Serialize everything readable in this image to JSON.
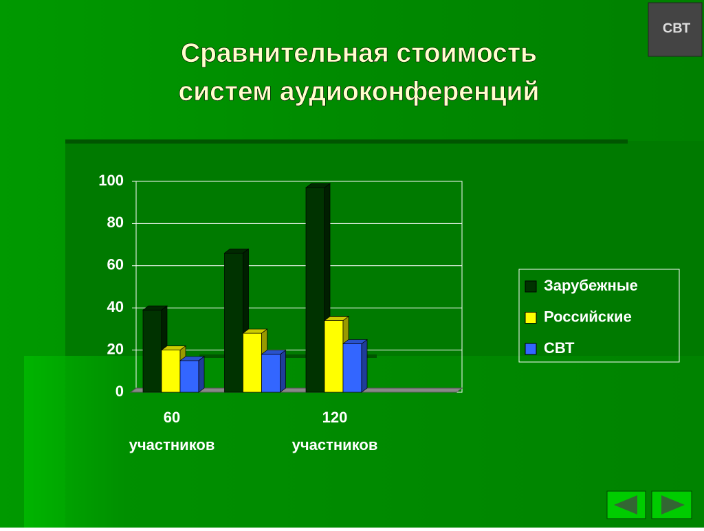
{
  "chart_data": {
    "type": "bar3d",
    "title": "Сравнительная стоимость систем аудиоконференций",
    "categories": [
      "60\nучастников",
      null,
      "120\nучастников",
      null
    ],
    "series": [
      {
        "name": "Зарубежные",
        "color": "#003300",
        "values": [
          39,
          66,
          97,
          null
        ]
      },
      {
        "name": "Российские",
        "color": "#ffff00",
        "values": [
          20,
          28,
          34,
          null
        ]
      },
      {
        "name": "СВТ",
        "color": "#3366ff",
        "values": [
          15,
          18,
          23,
          null
        ]
      }
    ],
    "ylim": [
      0,
      100
    ],
    "yticks": [
      0,
      20,
      40,
      60,
      80,
      100
    ],
    "grid": true,
    "legend": "right"
  },
  "logo": "СВТ"
}
